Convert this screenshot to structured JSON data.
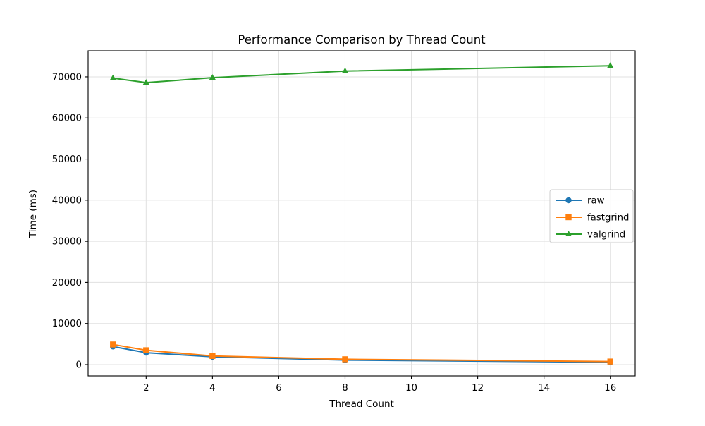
{
  "figure": {
    "background": "#ffffff",
    "text_color": "#000000",
    "grid_color": "#e0e0e0",
    "spine_color": "#000000",
    "legend_border_color": "#cccccc",
    "legend_background": "#ffffff"
  },
  "chart_data": {
    "type": "line",
    "title": "Performance Comparison by Thread Count",
    "xlabel": "Thread Count",
    "ylabel": "Time (ms)",
    "x": [
      1,
      2,
      4,
      8,
      16
    ],
    "series": [
      {
        "name": "raw",
        "color": "#1f77b4",
        "marker": "circle",
        "values": [
          4400,
          2900,
          1900,
          1100,
          600
        ]
      },
      {
        "name": "fastgrind",
        "color": "#ff7f0e",
        "marker": "square",
        "values": [
          4900,
          3500,
          2100,
          1300,
          750
        ]
      },
      {
        "name": "valgrind",
        "color": "#2ca02c",
        "marker": "triangle",
        "values": [
          69700,
          68600,
          69800,
          71400,
          72700
        ]
      }
    ],
    "xticks": [
      2,
      4,
      6,
      8,
      10,
      12,
      14,
      16
    ],
    "yticks": [
      0,
      10000,
      20000,
      30000,
      40000,
      50000,
      60000,
      70000
    ],
    "xlim": [
      0.25,
      16.75
    ],
    "ylim": [
      -2745,
      76340
    ],
    "grid": true,
    "legend_position": "center right"
  }
}
